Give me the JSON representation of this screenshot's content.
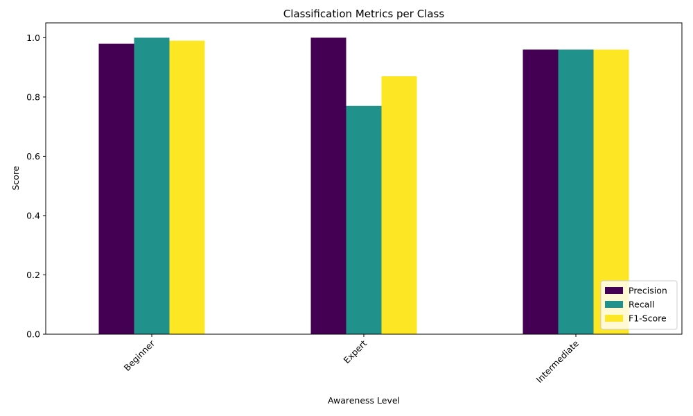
{
  "chart_data": {
    "type": "bar",
    "title": "Classification Metrics per Class",
    "xlabel": "Awareness Level",
    "ylabel": "Score",
    "categories": [
      "Beginner",
      "Expert",
      "Intermediate"
    ],
    "series": [
      {
        "name": "Precision",
        "values": [
          0.98,
          1.0,
          0.96
        ],
        "color": "#440154"
      },
      {
        "name": "Recall",
        "values": [
          1.0,
          0.77,
          0.96
        ],
        "color": "#21918c"
      },
      {
        "name": "F1-Score",
        "values": [
          0.99,
          0.87,
          0.96
        ],
        "color": "#fde725"
      }
    ],
    "ylim": [
      0,
      1.05
    ],
    "yticks": [
      "0.0",
      "0.2",
      "0.4",
      "0.6",
      "0.8",
      "1.0"
    ],
    "grid": false,
    "legend_position": "bottom-right"
  }
}
